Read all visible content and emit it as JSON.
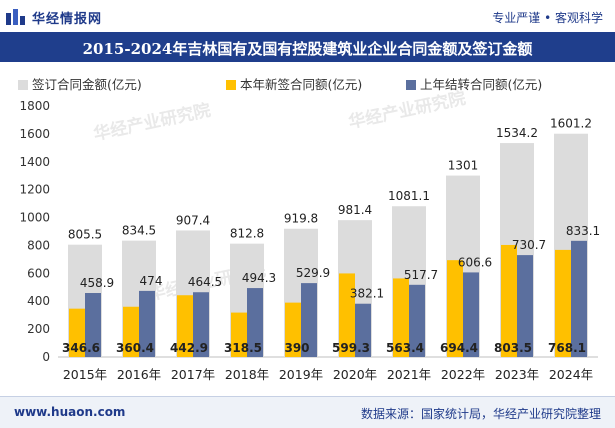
{
  "header": {
    "brand": "华经情报网",
    "slogan": "专业严谨 • 客观科学"
  },
  "footer": {
    "website": "www.huaon.com",
    "source": "数据来源：国家统计局，华经产业研究院整理"
  },
  "watermark": "华经产业研究院",
  "colors": {
    "title_bar": "#1f3e8c",
    "total": "#dcdcdc",
    "new": "#ffc000",
    "carry": "#5b6f9e"
  },
  "chart_data": {
    "type": "bar",
    "title": "2015-2024年吉林国有及国有控股建筑业企业合同金额及签订金额",
    "xlabel": "",
    "ylabel": "",
    "ylim": [
      0,
      1800
    ],
    "yticks": [
      0,
      200,
      400,
      600,
      800,
      1000,
      1200,
      1400,
      1600,
      1800
    ],
    "grid": false,
    "legend_position": "top",
    "categories": [
      "2015年",
      "2016年",
      "2017年",
      "2018年",
      "2019年",
      "2020年",
      "2021年",
      "2022年",
      "2023年",
      "2024年"
    ],
    "series": [
      {
        "name": "签订合同金额(亿元)",
        "values": [
          805.5,
          834.5,
          907.4,
          812.8,
          919.8,
          981.4,
          1081.1,
          1301,
          1534.2,
          1601.2
        ]
      },
      {
        "name": "本年新签合同额(亿元)",
        "values": [
          346.6,
          360.4,
          442.9,
          318.5,
          390,
          599.3,
          563.4,
          694.4,
          803.5,
          768.1
        ]
      },
      {
        "name": "上年结转合同额(亿元)",
        "values": [
          458.9,
          474,
          464.5,
          494.3,
          529.9,
          382.1,
          517.7,
          606.6,
          730.7,
          833.1
        ]
      }
    ]
  }
}
